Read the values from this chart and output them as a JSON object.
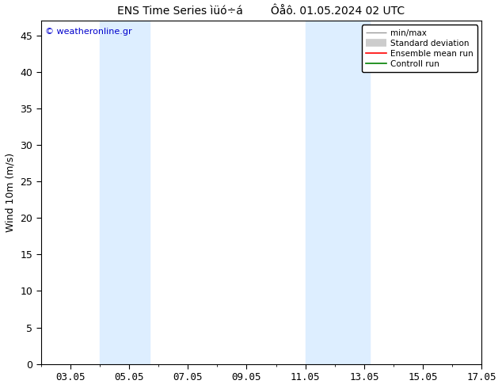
{
  "title_part1": "ENS Time Series ìüó÷á",
  "title_part2": "Ôåô. 01.05.2024 02 UTC",
  "ylabel": "Wind 10m (m/s)",
  "xlim": [
    2,
    17
  ],
  "ylim": [
    0,
    47
  ],
  "yticks": [
    0,
    5,
    10,
    15,
    20,
    25,
    30,
    35,
    40,
    45
  ],
  "xtick_labels": [
    "03.05",
    "05.05",
    "07.05",
    "09.05",
    "11.05",
    "13.05",
    "15.05",
    "17.05"
  ],
  "xtick_positions": [
    3,
    5,
    7,
    9,
    11,
    13,
    15,
    17
  ],
  "shade_regions": [
    {
      "xstart": 4.0,
      "xend": 5.7
    },
    {
      "xstart": 11.0,
      "xend": 13.2
    }
  ],
  "shade_color": "#ddeeff",
  "background_color": "#ffffff",
  "watermark_text": "© weatheronline.gr",
  "watermark_color": "#0000cc",
  "border_color": "#000000",
  "tick_color": "#000000",
  "font_size": 9,
  "title_font_size": 10,
  "title_gap": "        "
}
